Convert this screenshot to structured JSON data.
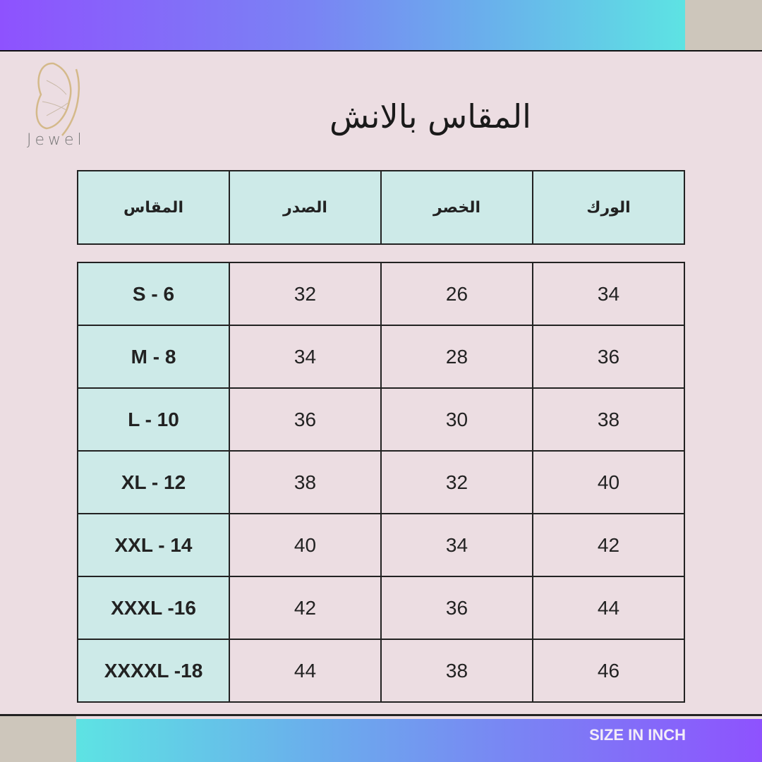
{
  "brand": {
    "name": "Jewel",
    "accent_gold": "#d4b98a"
  },
  "title": "المقاس بالانش",
  "colors": {
    "background": "#ecdde2",
    "cell_highlight": "#cdeae8",
    "gradient_start": "#8e52fe",
    "gradient_end": "#5de3e3"
  },
  "table": {
    "headers": [
      "المقاس",
      "الصدر",
      "الخصر",
      "الورك"
    ],
    "rows": [
      [
        "S - 6",
        "32",
        "26",
        "34"
      ],
      [
        "M - 8",
        "34",
        "28",
        "36"
      ],
      [
        "L - 10",
        "36",
        "30",
        "38"
      ],
      [
        "XL - 12",
        "38",
        "32",
        "40"
      ],
      [
        "XXL - 14",
        "40",
        "34",
        "42"
      ],
      [
        "XXXL -16",
        "42",
        "36",
        "44"
      ],
      [
        "XXXXL -18",
        "44",
        "38",
        "46"
      ]
    ]
  },
  "footer": {
    "label": "SIZE IN INCH"
  }
}
